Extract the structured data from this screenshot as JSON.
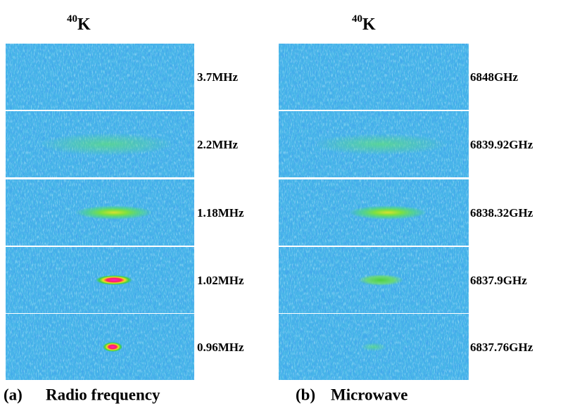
{
  "panels": [
    {
      "isotope": {
        "mass": "40",
        "element": "K"
      },
      "label": "(a)",
      "caption": "Radio frequency",
      "rows": [
        "3.7MHz",
        "2.2MHz",
        "1.18MHz",
        "1.02MHz",
        "0.96MHz"
      ]
    },
    {
      "isotope": {
        "mass": "40",
        "element": "K"
      },
      "label": "(b)",
      "caption": "Microwave",
      "rows": [
        "6848GHz",
        "6839.92GHz",
        "6838.32GHz",
        "6837.9GHz",
        "6837.76GHz"
      ]
    }
  ]
}
